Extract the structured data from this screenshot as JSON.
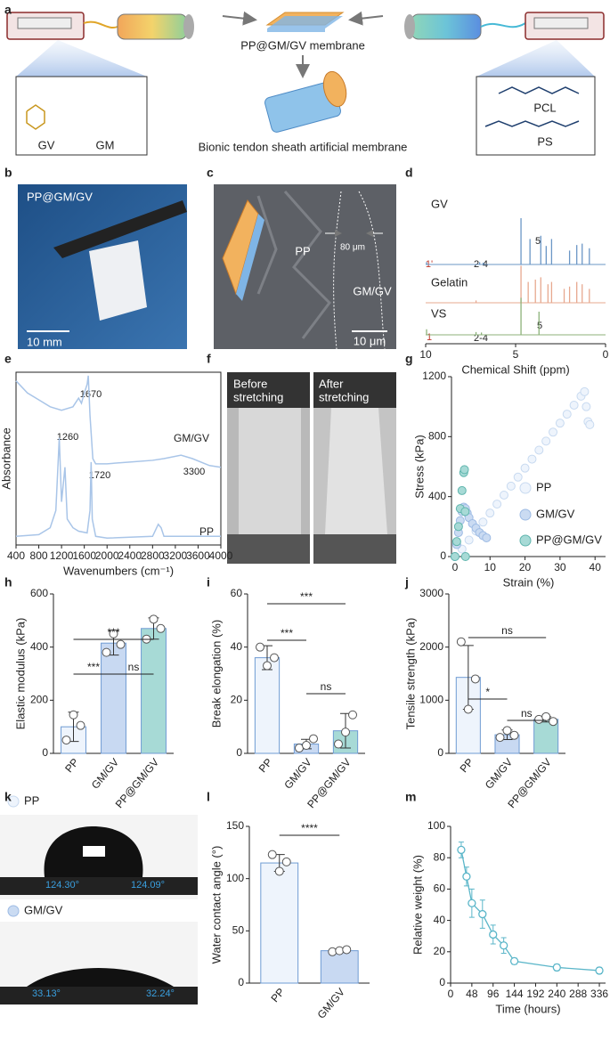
{
  "panel_labels": [
    "a",
    "b",
    "c",
    "d",
    "e",
    "f",
    "g",
    "h",
    "i",
    "j",
    "k",
    "l",
    "m"
  ],
  "figure_a": {
    "membrane": "PP@GM/GV membrane",
    "sheath": "Bionic tendon sheath artificial membrane",
    "left_box": [
      "GV",
      "GM"
    ],
    "right_box": [
      "PCL",
      "PS"
    ]
  },
  "photo_b": {
    "label": "PP@GM/GV",
    "scale_bar": "10 mm"
  },
  "photo_c": {
    "layers": [
      "PP",
      "GM/GV"
    ],
    "thickness": "80 μm",
    "scale_bar": "10 μm"
  },
  "photo_f": {
    "before": [
      "Before",
      "stretching"
    ],
    "after": [
      "After",
      "stretching"
    ]
  },
  "photo_k": {
    "samples": [
      "PP",
      "GM/GV"
    ],
    "angles": [
      "124.30°",
      "124.09°",
      "33.13°",
      "32.24°"
    ]
  },
  "chart_data": [
    {
      "type": "spectra",
      "x_label": "Chemical Shift (ppm)",
      "xlim": [
        10,
        0
      ],
      "xticks": [
        10,
        5,
        0
      ],
      "series": [
        {
          "name": "GV",
          "color": "#6b97c6",
          "x": [
            9.95,
            7.0,
            6.8,
            4.7,
            4.2,
            3.6,
            3.3,
            3.0,
            2.0,
            1.6,
            1.3,
            0.9
          ],
          "values": [
            0.05,
            0.05,
            0.04,
            1.0,
            0.55,
            0.62,
            0.4,
            0.55,
            0.3,
            0.42,
            0.45,
            0.35
          ]
        },
        {
          "name": "Gelatin",
          "color": "#e7a88f",
          "x": [
            7.2,
            4.7,
            4.3,
            3.9,
            3.6,
            3.2,
            3.0,
            2.3,
            2.0,
            1.6,
            1.3,
            0.9
          ],
          "values": [
            0.05,
            0.8,
            0.45,
            0.5,
            0.55,
            0.4,
            0.45,
            0.3,
            0.35,
            0.45,
            0.4,
            0.3
          ]
        },
        {
          "name": "VS",
          "color": "#8cb27a",
          "x": [
            9.95,
            7.2,
            6.9,
            4.7,
            3.7
          ],
          "values": [
            0.12,
            0.06,
            0.05,
            0.8,
            0.5
          ]
        }
      ],
      "annotations": [
        {
          "text": "5"
        },
        {
          "text": "1'",
          "color": "#c0392b"
        },
        {
          "text": "2-4"
        },
        {
          "text": "5"
        },
        {
          "text": "1",
          "color": "#c0392b"
        },
        {
          "text": "2-4"
        }
      ]
    },
    {
      "type": "line",
      "frame": true,
      "x_label": "Wavenumbers (cm⁻¹)",
      "y_label": "Absorbance",
      "xlim": [
        400,
        4000
      ],
      "ylim": [
        0,
        1
      ],
      "xticks": [
        400,
        800,
        1200,
        1600,
        2000,
        2400,
        2800,
        3200,
        3600,
        4000
      ],
      "series": [
        {
          "name": "GM/GV",
          "color": "#a9c5e8",
          "x": [
            400,
            600,
            800,
            1000,
            1200,
            1400,
            1500,
            1550,
            1600,
            1650,
            1670,
            1700,
            1750,
            1800,
            2000,
            2400,
            2800,
            3000,
            3300,
            3500,
            3800,
            4000
          ],
          "values": [
            0.95,
            0.88,
            0.84,
            0.8,
            0.78,
            0.8,
            0.85,
            0.82,
            0.88,
            0.93,
            0.98,
            0.75,
            0.5,
            0.47,
            0.47,
            0.48,
            0.49,
            0.5,
            0.52,
            0.5,
            0.46,
            0.45
          ]
        },
        {
          "name": "PP",
          "color": "#a9c5e8",
          "x": [
            400,
            800,
            1000,
            1100,
            1160,
            1200,
            1260,
            1300,
            1400,
            1500,
            1650,
            1700,
            1720,
            1740,
            1800,
            2000,
            2800,
            2900,
            2950,
            3000,
            3500,
            4000
          ],
          "values": [
            0.05,
            0.06,
            0.1,
            0.2,
            0.62,
            0.25,
            0.45,
            0.15,
            0.1,
            0.08,
            0.07,
            0.2,
            0.48,
            0.15,
            0.05,
            0.04,
            0.05,
            0.12,
            0.1,
            0.05,
            0.05,
            0.05
          ]
        }
      ],
      "annotations": [
        {
          "text": "1670"
        },
        {
          "text": "1720"
        },
        {
          "text": "3300"
        },
        {
          "text": "1260"
        }
      ]
    },
    {
      "type": "scatter",
      "x_label": "Strain (%)",
      "y_label": "Stress (kPa)",
      "xlim": [
        -1,
        43
      ],
      "ylim": [
        0,
        1200
      ],
      "xticks": [
        0,
        10,
        20,
        30,
        40
      ],
      "yticks": [
        0,
        400,
        800,
        1200
      ],
      "series": [
        {
          "name": "PP",
          "color": "#eef4fc",
          "edge_color": "#c8daf0",
          "x": [
            0,
            2,
            4,
            6,
            8,
            10,
            12,
            14,
            16,
            18,
            20,
            22,
            24,
            26,
            28,
            30,
            32,
            34,
            36,
            37,
            37.5,
            38,
            38.5
          ],
          "values": [
            0,
            50,
            110,
            170,
            230,
            290,
            350,
            410,
            470,
            530,
            590,
            650,
            710,
            770,
            830,
            890,
            950,
            1010,
            1070,
            1100,
            1000,
            900,
            880
          ]
        },
        {
          "name": "GM/GV",
          "color": "#cadbf2",
          "edge_color": "#9dbbe4",
          "x": [
            0,
            0.5,
            1,
            1.5,
            2,
            2.5,
            3,
            3.5,
            4,
            5,
            6,
            7,
            8,
            9
          ],
          "values": [
            0,
            80,
            160,
            240,
            300,
            330,
            320,
            290,
            260,
            220,
            190,
            160,
            140,
            125
          ]
        },
        {
          "name": "PP@GM/GV",
          "color": "#a7dad6",
          "edge_color": "#5fb5ad",
          "x": [
            0,
            0.5,
            1,
            1.5,
            2,
            2.5,
            2.7,
            2.9,
            3.0
          ],
          "values": [
            0,
            100,
            200,
            320,
            440,
            560,
            580,
            300,
            0
          ]
        }
      ]
    },
    {
      "type": "bar",
      "y_label": "Elastic modulus (kPa)",
      "ylim": [
        0,
        600
      ],
      "yticks": [
        0,
        200,
        400,
        600
      ],
      "categories": [
        "PP",
        "GM/GV",
        "PP@GM/GV"
      ],
      "values": [
        100,
        415,
        470
      ],
      "errors": [
        55,
        45,
        40
      ],
      "points": [
        [
          50,
          145,
          105
        ],
        [
          380,
          450,
          410
        ],
        [
          430,
          505,
          470
        ]
      ],
      "colors": [
        "#eef4fc",
        "#c8d9f2",
        "#a7dad6"
      ],
      "edge_color": "#6f9bd3",
      "significance": [
        "***",
        "ns",
        "***"
      ]
    },
    {
      "type": "bar",
      "y_label": "Break elongation (%)",
      "ylim": [
        0,
        60
      ],
      "yticks": [
        0,
        20,
        40,
        60
      ],
      "categories": [
        "PP",
        "GM/GV",
        "PP@GM/GV"
      ],
      "values": [
        36,
        3.5,
        8.5
      ],
      "errors": [
        4.5,
        1.8,
        6.5
      ],
      "points": [
        [
          40,
          33,
          36
        ],
        [
          2,
          3,
          5.5
        ],
        [
          3.5,
          8,
          14.5
        ]
      ],
      "colors": [
        "#eef4fc",
        "#c8d9f2",
        "#a7dad6"
      ],
      "edge_color": "#6f9bd3",
      "significance": [
        "***",
        "ns",
        "***"
      ]
    },
    {
      "type": "bar",
      "y_label": "Tensile strength (kPa)",
      "ylim": [
        0,
        3000
      ],
      "yticks": [
        0,
        1000,
        2000,
        3000
      ],
      "categories": [
        "PP",
        "GM/GV",
        "PP@GM/GV"
      ],
      "values": [
        1430,
        350,
        640
      ],
      "errors": [
        600,
        90,
        50
      ],
      "points": [
        [
          2100,
          830,
          1400
        ],
        [
          300,
          430,
          340
        ],
        [
          640,
          690,
          600
        ]
      ],
      "colors": [
        "#eef4fc",
        "#c8d9f2",
        "#a7dad6"
      ],
      "edge_color": "#6f9bd3",
      "significance": [
        "*",
        "ns",
        "ns"
      ]
    },
    {
      "type": "bar",
      "y_label": "Water contact angle (°)",
      "ylim": [
        0,
        150
      ],
      "yticks": [
        0,
        50,
        100,
        150
      ],
      "categories": [
        "PP",
        "GM/GV"
      ],
      "values": [
        115,
        31
      ],
      "errors": [
        8,
        1.5
      ],
      "points": [
        [
          123,
          107,
          116
        ],
        [
          30,
          31,
          32
        ]
      ],
      "colors": [
        "#eef4fc",
        "#c8d9f2"
      ],
      "edge_color": "#6f9bd3",
      "significance": [
        "****"
      ]
    },
    {
      "type": "line",
      "x_label": "Time (hours)",
      "y_label": "Relative weight (%)",
      "xlim": [
        0,
        350
      ],
      "ylim": [
        0,
        100
      ],
      "xticks": [
        0,
        48,
        96,
        144,
        192,
        240,
        288,
        336
      ],
      "yticks": [
        0,
        20,
        40,
        60,
        80,
        100
      ],
      "color": "#5bb6c9",
      "x": [
        24,
        36,
        48,
        72,
        96,
        120,
        144,
        240,
        336
      ],
      "values": [
        85,
        68,
        51,
        44,
        31,
        24,
        14,
        10,
        8
      ],
      "errors": [
        5,
        6,
        9,
        9,
        6,
        5,
        2,
        2,
        2
      ]
    }
  ]
}
